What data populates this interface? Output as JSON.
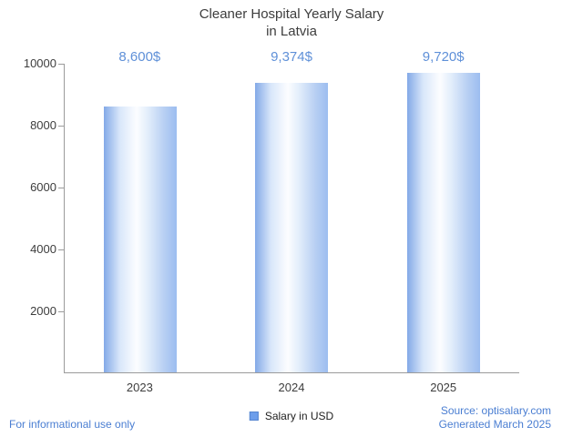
{
  "header": {
    "title_line1": "Cleaner Hospital Yearly Salary",
    "title_line2": "in Latvia"
  },
  "chart_data": {
    "type": "bar",
    "title": "Cleaner Hospital Yearly Salary in Latvia",
    "categories": [
      "2023",
      "2024",
      "2025"
    ],
    "values": [
      8600,
      9374,
      9720
    ],
    "data_labels": [
      "8,600$",
      "9,374$",
      "9,720$"
    ],
    "xlabel": "",
    "ylabel": "",
    "ylim": [
      0,
      10000
    ],
    "yticks": [
      2000,
      4000,
      6000,
      8000,
      10000
    ],
    "grid": false,
    "legend": [
      "Salary in USD"
    ],
    "legend_position": "bottom",
    "bar_color": "#7da7e8"
  },
  "legend": {
    "label": "Salary in USD",
    "swatch_color": "#6d9eeb"
  },
  "footer": {
    "disclaimer": "For informational use only",
    "source": "Source: optisalary.com",
    "generated": "Generated March 2025"
  },
  "colors": {
    "data_label_blue": "#5f90d8",
    "footer_blue": "#4a7ed2",
    "axis_gray": "#9b9b9b",
    "text_gray": "#3d3d3d"
  }
}
